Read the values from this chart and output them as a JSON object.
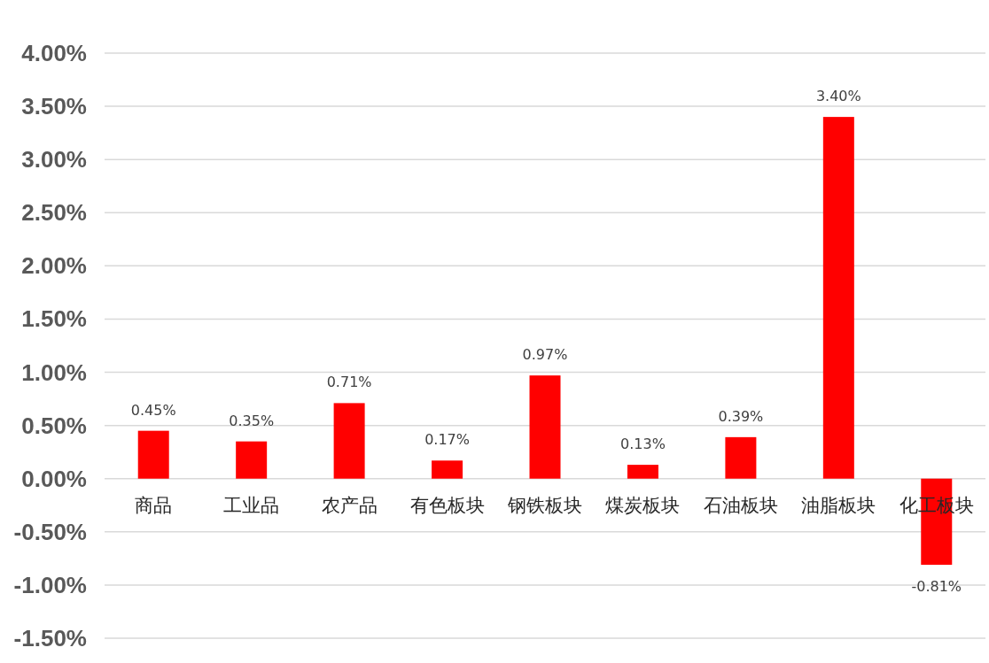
{
  "chart_data": {
    "type": "bar",
    "categories": [
      "商品",
      "工业品",
      "农产品",
      "有色板块",
      "钢铁板块",
      "煤炭板块",
      "石油板块",
      "油脂板块",
      "化工板块"
    ],
    "values": [
      0.45,
      0.35,
      0.71,
      0.17,
      0.97,
      0.13,
      0.39,
      3.4,
      -0.81
    ],
    "value_labels": [
      "0.45%",
      "0.35%",
      "0.71%",
      "0.17%",
      "0.97%",
      "0.13%",
      "0.39%",
      "3.40%",
      "-0.81%"
    ],
    "color": "#ff0000",
    "ylim": [
      -1.5,
      4.0
    ],
    "yticks": [
      {
        "value": -1.5,
        "label": "-1.50%"
      },
      {
        "value": -1.0,
        "label": "-1.00%"
      },
      {
        "value": -0.5,
        "label": "-0.50%"
      },
      {
        "value": 0,
        "label": "0.00%"
      },
      {
        "value": 0.5,
        "label": "0.50%"
      },
      {
        "value": 1.0,
        "label": "1.00%"
      },
      {
        "value": 1.5,
        "label": "1.50%"
      },
      {
        "value": 2.0,
        "label": "2.00%"
      },
      {
        "value": 2.5,
        "label": "2.50%"
      },
      {
        "value": 3.0,
        "label": "3.00%"
      },
      {
        "value": 3.5,
        "label": "3.50%"
      },
      {
        "value": 4.0,
        "label": "4.00%"
      }
    ],
    "grid": "y"
  }
}
